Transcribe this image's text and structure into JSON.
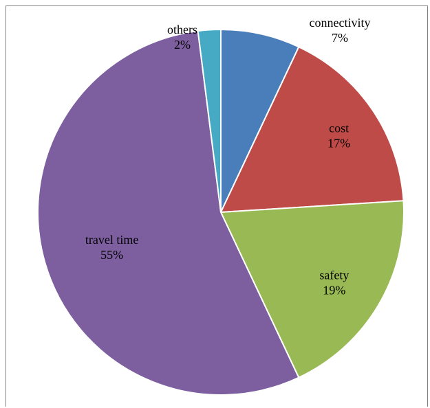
{
  "chart_data": {
    "type": "pie",
    "title": "",
    "slices": [
      {
        "label": "connectivity",
        "value": 7,
        "value_label": "7%",
        "color": "#4a7ebb"
      },
      {
        "label": "cost",
        "value": 17,
        "value_label": "17%",
        "color": "#be4b48"
      },
      {
        "label": "safety",
        "value": 19,
        "value_label": "19%",
        "color": "#98b954"
      },
      {
        "label": "travel time",
        "value": 55,
        "value_label": "55%",
        "color": "#7d5fa0"
      },
      {
        "label": "others",
        "value": 2,
        "value_label": "2%",
        "color": "#46aac5"
      }
    ],
    "legend": "none",
    "start": "12 o'clock",
    "direction": "clockwise"
  }
}
